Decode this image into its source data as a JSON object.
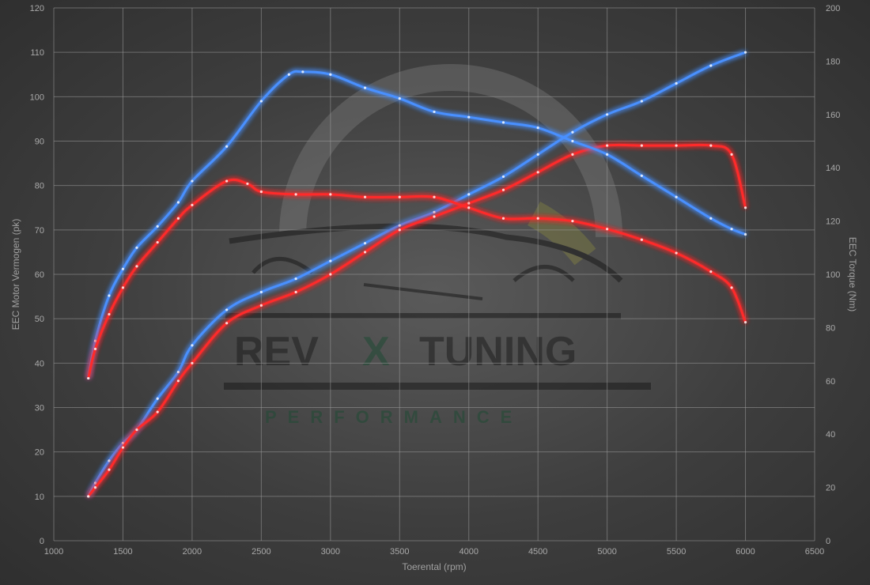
{
  "chart_data": {
    "type": "line",
    "xlabel": "Toerental (rpm)",
    "ylabel_left": "EEC Motor Vermogen (pk)",
    "ylabel_right": "EEC Torque (Nm)",
    "xlim": [
      1000,
      6500
    ],
    "ylim_left": [
      0,
      120
    ],
    "ylim_right": [
      0,
      200
    ],
    "x_ticks": [
      1000,
      1500,
      2000,
      2500,
      3000,
      3500,
      4000,
      4500,
      5000,
      5500,
      6000,
      6500
    ],
    "y_left_ticks": [
      0,
      10,
      20,
      30,
      40,
      50,
      60,
      70,
      80,
      90,
      100,
      110,
      120
    ],
    "y_right_ticks": [
      0,
      20,
      40,
      60,
      80,
      100,
      120,
      140,
      160,
      180,
      200
    ],
    "grid": true,
    "series": [
      {
        "color": "#4a90ff",
        "axis": "left",
        "x": [
          1250,
          1300,
          1400,
          1500,
          1600,
          1750,
          1900,
          2000,
          2250,
          2500,
          2750,
          3000,
          3250,
          3500,
          3750,
          4000,
          4250,
          4500,
          4750,
          5000,
          5250,
          5500,
          5750,
          6000
        ],
        "y": [
          10,
          13,
          18,
          22,
          25,
          32,
          38,
          44,
          52,
          56,
          59,
          63,
          67,
          71,
          74,
          78,
          82,
          87,
          92,
          96,
          99,
          103,
          107,
          110
        ]
      },
      {
        "color": "#ff2a2a",
        "axis": "left",
        "x": [
          1250,
          1300,
          1400,
          1500,
          1600,
          1750,
          1900,
          2000,
          2250,
          2500,
          2750,
          3000,
          3250,
          3500,
          3750,
          4000,
          4250,
          4500,
          4750,
          5000,
          5250,
          5500,
          5750,
          5900,
          6000
        ],
        "y": [
          10,
          12,
          16,
          21,
          25,
          29,
          36,
          40,
          49,
          53,
          56,
          60,
          65,
          70,
          73,
          76,
          79,
          83,
          87,
          89,
          89,
          89,
          89,
          87,
          75
        ]
      },
      {
        "color": "#4a90ff",
        "axis": "right",
        "x": [
          1250,
          1300,
          1400,
          1500,
          1600,
          1750,
          1900,
          2000,
          2250,
          2500,
          2700,
          2800,
          3000,
          3250,
          3500,
          3750,
          4000,
          4250,
          4500,
          4750,
          5000,
          5250,
          5500,
          5750,
          5900,
          6000
        ],
        "y": [
          61,
          75,
          92,
          102,
          110,
          118,
          127,
          135,
          148,
          165,
          175,
          176,
          175,
          170,
          166,
          161,
          159,
          157,
          155,
          150,
          145,
          137,
          129,
          121,
          117,
          115
        ]
      },
      {
        "color": "#ff2a2a",
        "axis": "right",
        "x": [
          1250,
          1300,
          1400,
          1500,
          1600,
          1750,
          1900,
          2000,
          2250,
          2400,
          2500,
          2750,
          3000,
          3250,
          3500,
          3750,
          4000,
          4250,
          4500,
          4750,
          5000,
          5250,
          5500,
          5750,
          5900,
          6000
        ],
        "y": [
          61,
          72,
          85,
          95,
          103,
          112,
          121,
          126,
          135,
          134,
          131,
          130,
          130,
          129,
          129,
          129,
          125,
          121,
          121,
          120,
          117,
          113,
          108,
          101,
          95,
          82
        ]
      }
    ]
  },
  "watermark": {
    "brand_left": "REV",
    "brand_x": "X",
    "brand_right": "TUNING",
    "tagline": "PERFORMANCE"
  }
}
